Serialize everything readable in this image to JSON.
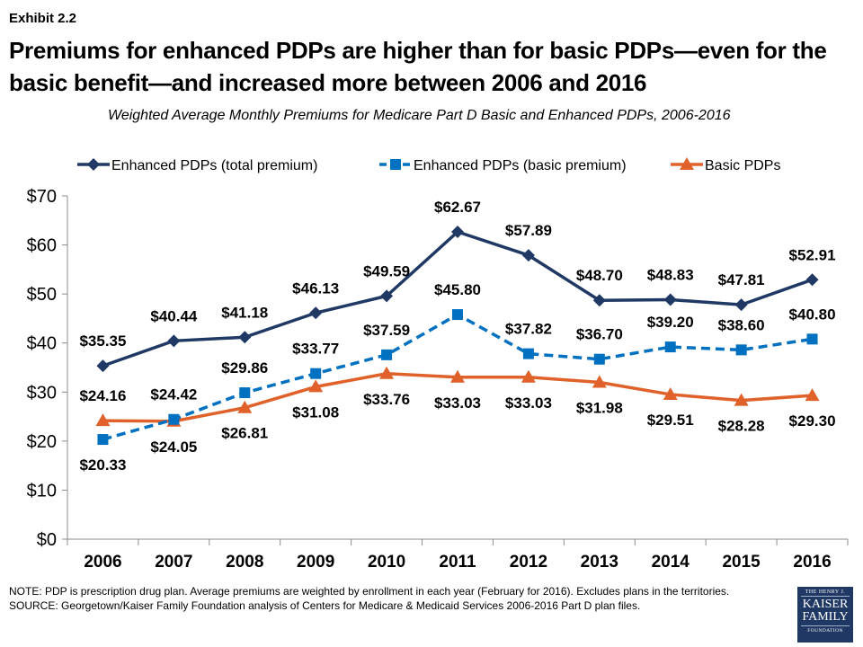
{
  "header": {
    "exhibit": "Exhibit 2.2",
    "title": "Premiums for enhanced PDPs are higher than for basic PDPs—even for the basic benefit—and increased more between 2006 and 2016",
    "subtitle": "Weighted Average Monthly Premiums for Medicare Part D Basic and Enhanced PDPs, 2006-2016"
  },
  "chart_data": {
    "type": "line",
    "title": "Weighted Average Monthly Premiums for Medicare Part D Basic and Enhanced PDPs, 2006-2016",
    "xlabel": "",
    "ylabel": "",
    "categories": [
      "2006",
      "2007",
      "2008",
      "2009",
      "2010",
      "2011",
      "2012",
      "2013",
      "2014",
      "2015",
      "2016"
    ],
    "ylim": [
      0,
      70
    ],
    "yticks": [
      0,
      10,
      20,
      30,
      40,
      50,
      60,
      70
    ],
    "ytick_labels": [
      "$0",
      "$10",
      "$20",
      "$30",
      "$40",
      "$50",
      "$60",
      "$70"
    ],
    "grid": false,
    "legend_position": "top",
    "series": [
      {
        "name": "Enhanced PDPs (total premium)",
        "color": "#1f3864",
        "marker": "diamond",
        "line_style": "solid",
        "label_position": "above",
        "values": [
          35.35,
          40.44,
          41.18,
          46.13,
          49.59,
          62.67,
          57.89,
          48.7,
          48.83,
          47.81,
          52.91
        ],
        "labels": [
          "$35.35",
          "$40.44",
          "$41.18",
          "$46.13",
          "$49.59",
          "$62.67",
          "$57.89",
          "$48.70",
          "$48.83",
          "$47.81",
          "$52.91"
        ]
      },
      {
        "name": "Enhanced PDPs (basic premium)",
        "color": "#0070c0",
        "marker": "square",
        "line_style": "dashed",
        "label_position": [
          "below",
          "above",
          "above",
          "above",
          "above",
          "above",
          "above",
          "above",
          "above",
          "above",
          "above"
        ],
        "values": [
          20.33,
          24.42,
          29.86,
          33.77,
          37.59,
          45.8,
          37.82,
          36.7,
          39.2,
          38.6,
          40.8
        ],
        "labels": [
          "$20.33",
          "$24.42",
          "$29.86",
          "$33.77",
          "$37.59",
          "$45.80",
          "$37.82",
          "$36.70",
          "$39.20",
          "$38.60",
          "$40.80"
        ]
      },
      {
        "name": "Basic PDPs",
        "color": "#e0622a",
        "marker": "triangle",
        "line_style": "solid",
        "label_position": [
          "above",
          "below",
          "below",
          "below",
          "below",
          "below",
          "below",
          "below",
          "below",
          "below",
          "below"
        ],
        "values": [
          24.16,
          24.05,
          26.81,
          31.08,
          33.76,
          33.03,
          33.03,
          31.98,
          29.51,
          28.28,
          29.3
        ],
        "labels": [
          "$24.16",
          "$24.05",
          "$26.81",
          "$31.08",
          "$33.76",
          "$33.03",
          "$33.03",
          "$31.98",
          "$29.51",
          "$28.28",
          "$29.30"
        ]
      }
    ]
  },
  "footer": {
    "note": "NOTE: PDP is prescription drug plan. Average premiums are weighted by enrollment in each year (February for 2016). Excludes plans in the territories.",
    "source": "SOURCE: Georgetown/Kaiser Family Foundation analysis of Centers for Medicare & Medicaid Services 2006-2016 Part D plan files.",
    "logo": {
      "line1": "THE HENRY J.",
      "line2": "KAISER",
      "line3": "FAMILY",
      "line4": "FOUNDATION",
      "color": "#1f3864"
    }
  }
}
